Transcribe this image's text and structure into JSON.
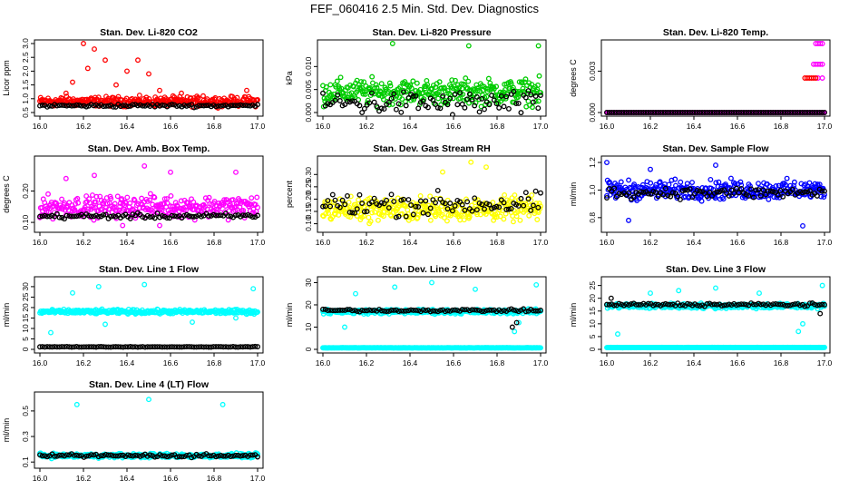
{
  "title": "FEF_060416  2.5 Min. Std. Dev. Diagnostics",
  "chart_data": [
    {
      "type": "scatter",
      "title": "Stan. Dev. Li-820 CO2",
      "ylabel": "Licor ppm",
      "xlim": [
        16.0,
        17.0
      ],
      "ylim": [
        0.5,
        3.0
      ],
      "xticks": [
        "16.0",
        "16.2",
        "16.4",
        "16.6",
        "16.8",
        "17.0"
      ],
      "yticks": [
        "0.5",
        "1.0",
        "1.5",
        "2.0",
        "2.5",
        "3.0"
      ],
      "series": [
        {
          "color": "#ff0000",
          "base": 0.9,
          "spread": 0.25,
          "outliers": [
            [
              16.2,
              3.0
            ],
            [
              16.25,
              2.8
            ],
            [
              16.3,
              2.4
            ],
            [
              16.22,
              2.1
            ],
            [
              16.15,
              1.6
            ],
            [
              16.4,
              2.0
            ],
            [
              16.45,
              2.4
            ],
            [
              16.5,
              1.9
            ],
            [
              16.55,
              1.3
            ],
            [
              16.65,
              1.2
            ],
            [
              16.75,
              1.1
            ],
            [
              16.95,
              1.3
            ],
            [
              16.35,
              1.5
            ],
            [
              16.12,
              1.2
            ]
          ]
        },
        {
          "color": "#000000",
          "base": 0.75,
          "spread": 0.08,
          "outliers": []
        }
      ]
    },
    {
      "type": "scatter",
      "title": "Stan. Dev. Li-820 Pressure",
      "ylabel": "kPa",
      "xlim": [
        16.0,
        17.0
      ],
      "ylim": [
        0.0,
        0.015
      ],
      "xticks": [
        "16.0",
        "16.2",
        "16.4",
        "16.6",
        "16.8",
        "17.0"
      ],
      "yticks": [
        "0.000",
        "0.005",
        "0.010"
      ],
      "series": [
        {
          "color": "#00cc00",
          "base": 0.0045,
          "spread": 0.004,
          "outliers": [
            [
              16.32,
              0.015
            ],
            [
              16.67,
              0.0145
            ],
            [
              16.99,
              0.0145
            ]
          ]
        },
        {
          "color": "#000000",
          "base": 0.002,
          "spread": 0.004,
          "outliers": []
        }
      ]
    },
    {
      "type": "scatter",
      "title": "Stan. Dev. Li-820 Temp.",
      "ylabel": "degrees C",
      "xlim": [
        16.0,
        17.0
      ],
      "ylim": [
        0.0,
        0.005
      ],
      "xticks": [
        "16.0",
        "16.2",
        "16.4",
        "16.6",
        "16.8",
        "17.0"
      ],
      "yticks": [
        "0.000",
        "0.003"
      ],
      "series": [
        {
          "color": "#ff00ff",
          "base": 0.0,
          "spread": 0.0,
          "outliers": [
            [
              16.96,
              0.005
            ],
            [
              16.97,
              0.005
            ],
            [
              16.98,
              0.005
            ],
            [
              16.99,
              0.005
            ],
            [
              16.95,
              0.0035
            ],
            [
              16.96,
              0.0035
            ],
            [
              16.97,
              0.0035
            ],
            [
              16.98,
              0.0035
            ],
            [
              16.99,
              0.0035
            ],
            [
              16.99,
              0.0025
            ],
            [
              16.97,
              0.0025
            ]
          ]
        },
        {
          "color": "#ff0000",
          "base": null,
          "spread": 0.0,
          "outliers": [
            [
              16.91,
              0.0025
            ],
            [
              16.92,
              0.0025
            ],
            [
              16.93,
              0.0025
            ],
            [
              16.94,
              0.0025
            ],
            [
              16.95,
              0.0025
            ],
            [
              16.96,
              0.0025
            ]
          ]
        },
        {
          "color": "#000000",
          "base": 0.0,
          "spread": 0.0,
          "outliers": []
        }
      ]
    },
    {
      "type": "scatter",
      "title": "Stan. Dev. Amb. Box Temp.",
      "ylabel": "degrees C",
      "xlim": [
        16.0,
        17.0
      ],
      "ylim": [
        0.08,
        0.3
      ],
      "xticks": [
        "16.0",
        "16.2",
        "16.4",
        "16.6",
        "16.8",
        "17.0"
      ],
      "yticks": [
        "0.10",
        "0.20"
      ],
      "series": [
        {
          "color": "#ff00ff",
          "base": 0.15,
          "spread": 0.05,
          "outliers": [
            [
              16.12,
              0.24
            ],
            [
              16.25,
              0.25
            ],
            [
              16.48,
              0.28
            ],
            [
              16.6,
              0.26
            ],
            [
              16.9,
              0.26
            ],
            [
              16.38,
              0.09
            ],
            [
              16.55,
              0.09
            ]
          ]
        },
        {
          "color": "#000000",
          "base": 0.12,
          "spread": 0.012,
          "outliers": []
        }
      ]
    },
    {
      "type": "scatter",
      "title": "Stan. Dev. Gas Stream RH",
      "ylabel": "percent",
      "xlim": [
        16.0,
        17.0
      ],
      "ylim": [
        0.08,
        0.36
      ],
      "xticks": [
        "16.0",
        "16.2",
        "16.4",
        "16.6",
        "16.8",
        "17.0"
      ],
      "yticks": [
        "0.10",
        "0.15",
        "0.20",
        "0.25",
        "0.30"
      ],
      "series": [
        {
          "color": "#ffff00",
          "base": 0.16,
          "spread": 0.07,
          "outliers": [
            [
              16.68,
              0.35
            ],
            [
              16.55,
              0.31
            ],
            [
              16.75,
              0.33
            ]
          ]
        },
        {
          "color": "#000000",
          "base": 0.18,
          "spread": 0.07,
          "outliers": []
        }
      ]
    },
    {
      "type": "scatter",
      "title": "Stan. Dev. Sample Flow",
      "ylabel": "ml/min",
      "xlim": [
        16.0,
        17.0
      ],
      "ylim": [
        0.72,
        1.22
      ],
      "xticks": [
        "16.0",
        "16.2",
        "16.4",
        "16.6",
        "16.8",
        "17.0"
      ],
      "yticks": [
        "0.8",
        "1.0",
        "1.2"
      ],
      "series": [
        {
          "color": "#0000ff",
          "base": 1.0,
          "spread": 0.1,
          "outliers": [
            [
              16.0,
              1.2
            ],
            [
              16.2,
              1.15
            ],
            [
              16.5,
              1.18
            ],
            [
              16.9,
              0.74
            ],
            [
              16.1,
              0.78
            ]
          ]
        },
        {
          "color": "#000000",
          "base": 0.98,
          "spread": 0.06,
          "outliers": []
        }
      ]
    },
    {
      "type": "scatter",
      "title": "Stan. Dev. Line 1 Flow",
      "ylabel": "ml/min",
      "xlim": [
        16.0,
        17.0
      ],
      "ylim": [
        0,
        33
      ],
      "xticks": [
        "16.0",
        "16.2",
        "16.4",
        "16.6",
        "16.8",
        "17.0"
      ],
      "yticks": [
        "0",
        "5",
        "10",
        "15",
        "20",
        "25",
        "30"
      ],
      "series": [
        {
          "color": "#00ffff",
          "base": 18,
          "spread": 1.5,
          "outliers": [
            [
              16.05,
              8
            ],
            [
              16.27,
              30
            ],
            [
              16.48,
              31
            ],
            [
              16.15,
              27
            ],
            [
              16.98,
              29
            ],
            [
              16.3,
              12
            ],
            [
              16.7,
              13
            ],
            [
              16.9,
              15
            ]
          ]
        },
        {
          "color": "#000000",
          "base": 1.2,
          "spread": 0.2,
          "outliers": []
        }
      ]
    },
    {
      "type": "scatter",
      "title": "Stan. Dev. Line 2 Flow",
      "ylabel": "ml/min",
      "xlim": [
        16.0,
        17.0
      ],
      "ylim": [
        0,
        31
      ],
      "xticks": [
        "16.0",
        "16.2",
        "16.4",
        "16.6",
        "16.8",
        "17.0"
      ],
      "yticks": [
        "0",
        "10",
        "20",
        "30"
      ],
      "series": [
        {
          "color": "#00ffff",
          "base": 17,
          "spread": 1.5,
          "outliers": [
            [
              16.1,
              10
            ],
            [
              16.15,
              25
            ],
            [
              16.33,
              28
            ],
            [
              16.5,
              30
            ],
            [
              16.7,
              27
            ],
            [
              16.98,
              29
            ],
            [
              16.88,
              8
            ],
            [
              16.9,
              12
            ]
          ]
        },
        {
          "color": "#00ffff",
          "base": 0.7,
          "spread": 0.1,
          "outliers": []
        },
        {
          "color": "#000000",
          "base": 17.5,
          "spread": 0.8,
          "outliers": [
            [
              16.87,
              10
            ],
            [
              16.89,
              12
            ]
          ]
        }
      ]
    },
    {
      "type": "scatter",
      "title": "Stan. Dev. Line 3 Flow",
      "ylabel": "ml/min",
      "xlim": [
        16.0,
        17.0
      ],
      "ylim": [
        0,
        27
      ],
      "xticks": [
        "16.0",
        "16.2",
        "16.4",
        "16.6",
        "16.8",
        "17.0"
      ],
      "yticks": [
        "0",
        "5",
        "10",
        "15",
        "20",
        "25"
      ],
      "series": [
        {
          "color": "#00ffff",
          "base": 17,
          "spread": 1.5,
          "outliers": [
            [
              16.05,
              6
            ],
            [
              16.2,
              22
            ],
            [
              16.33,
              23
            ],
            [
              16.5,
              24
            ],
            [
              16.7,
              22
            ],
            [
              16.88,
              7
            ],
            [
              16.9,
              10
            ],
            [
              16.99,
              25
            ]
          ]
        },
        {
          "color": "#00ffff",
          "base": 0.7,
          "spread": 0.1,
          "outliers": []
        },
        {
          "color": "#000000",
          "base": 17.5,
          "spread": 0.9,
          "outliers": [
            [
              16.02,
              20
            ],
            [
              16.98,
              14
            ]
          ]
        }
      ]
    },
    {
      "type": "scatter",
      "title": "Stan. Dev. Line 4 (LT) Flow",
      "ylabel": "ml/min",
      "xlim": [
        16.0,
        17.0
      ],
      "ylim": [
        0.08,
        0.62
      ],
      "xticks": [
        "16.0",
        "16.2",
        "16.4",
        "16.6",
        "16.8",
        "17.0"
      ],
      "yticks": [
        "0.1",
        "0.3",
        "0.5"
      ],
      "series": [
        {
          "color": "#00ffff",
          "base": 0.15,
          "spread": 0.025,
          "outliers": [
            [
              16.17,
              0.55
            ],
            [
              16.5,
              0.59
            ],
            [
              16.84,
              0.55
            ]
          ]
        },
        {
          "color": "#000000",
          "base": 0.15,
          "spread": 0.02,
          "outliers": []
        }
      ]
    }
  ]
}
